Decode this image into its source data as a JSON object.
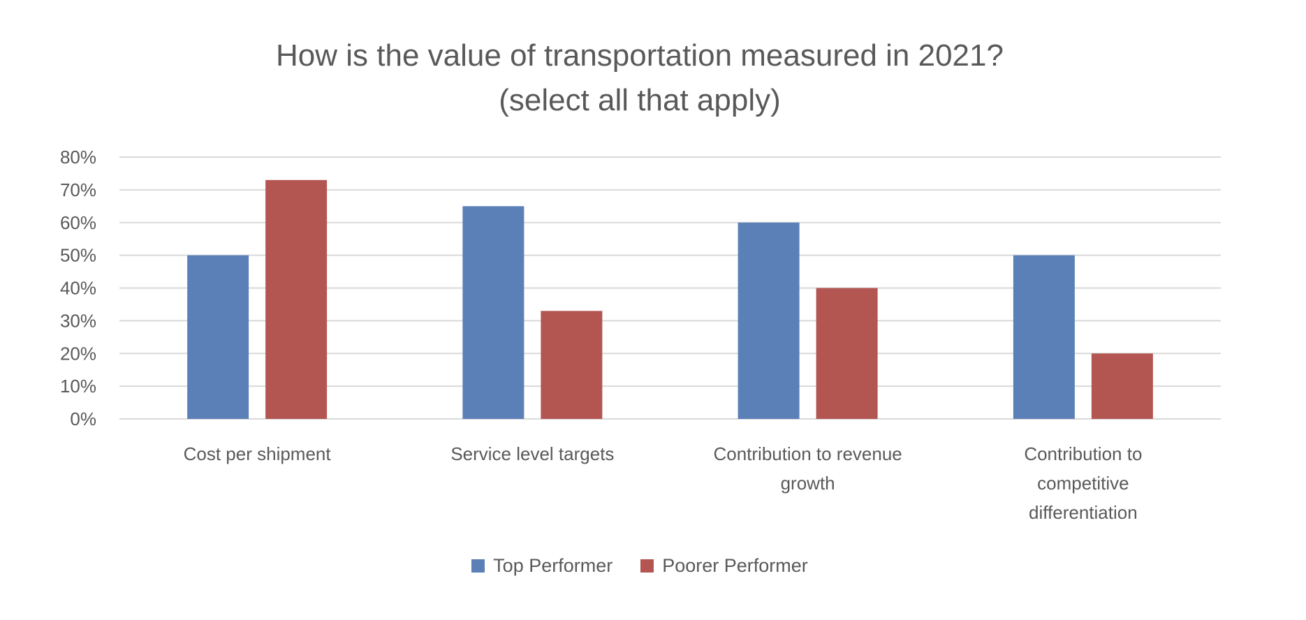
{
  "chart_data": {
    "type": "bar",
    "title": [
      "How is the value of transportation measured in 2021?",
      "(select all that apply)"
    ],
    "categories": [
      [
        "Cost per shipment"
      ],
      [
        "Service level targets"
      ],
      [
        "Contribution to revenue",
        "growth"
      ],
      [
        "Contribution to",
        "competitive",
        "differentiation"
      ]
    ],
    "series": [
      {
        "name": "Top Performer",
        "color": "#5B80B8",
        "values": [
          50,
          65,
          60,
          50
        ]
      },
      {
        "name": "Poorer Performer",
        "color": "#B35652",
        "values": [
          73,
          33,
          40,
          20
        ]
      }
    ],
    "ylim": [
      0,
      80
    ],
    "yticks": [
      0,
      10,
      20,
      30,
      40,
      50,
      60,
      70,
      80
    ],
    "ytick_labels": [
      "0%",
      "10%",
      "20%",
      "30%",
      "40%",
      "50%",
      "60%",
      "70%",
      "80%"
    ],
    "grid": true,
    "legend": "bottom",
    "xlabel": "",
    "ylabel": ""
  }
}
